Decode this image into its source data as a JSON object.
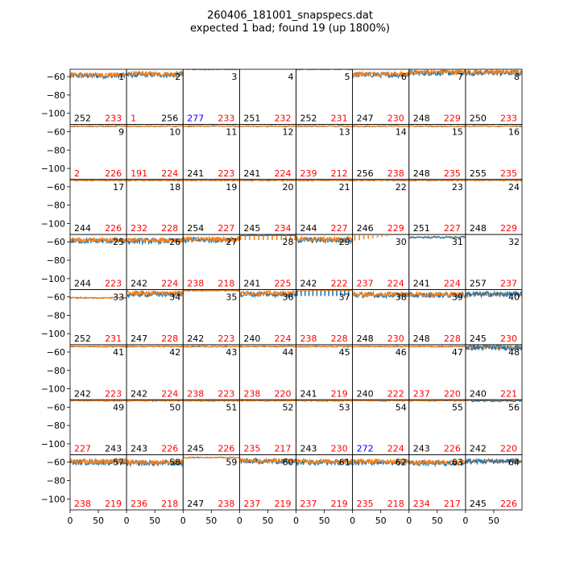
{
  "title_line1": "260406_181001_snapspecs.dat",
  "title_line2": "expected 1 bad; found 19 (up 1800%)",
  "colors": {
    "series_blue": "#1f77b4",
    "series_orange": "#ff7f0e",
    "count_black": "#000000",
    "count_red": "#ff0000",
    "count_blue": "#0000ff"
  },
  "chart_data": {
    "type": "line",
    "layout": "8x8 grid of small-multiple panels",
    "ylim": [
      -112,
      -52
    ],
    "xlim": [
      0,
      100
    ],
    "yticks": [
      -60,
      -80,
      -100
    ],
    "ytick_labels": [
      "−60",
      "−80",
      "−100"
    ],
    "xticks": [
      0,
      50
    ],
    "xtick_labels": [
      "0",
      "50"
    ],
    "series": [
      {
        "color": "#1f77b4"
      },
      {
        "color": "#ff7f0e"
      }
    ],
    "panels": [
      {
        "id": "1",
        "left": "252",
        "right": "233",
        "left_color": "black",
        "right_color": "red",
        "style": "busy",
        "level": -58
      },
      {
        "id": "2",
        "left": "1",
        "right": "256",
        "left_color": "red",
        "right_color": "black",
        "style": "busy",
        "level": -57
      },
      {
        "id": "3",
        "left": "277",
        "right": "233",
        "left_color": "blue",
        "right_color": "red",
        "style": "flat",
        "level": -52
      },
      {
        "id": "4",
        "left": "251",
        "right": "232",
        "left_color": "black",
        "right_color": "red",
        "style": "flat",
        "level": -51
      },
      {
        "id": "5",
        "left": "252",
        "right": "231",
        "left_color": "black",
        "right_color": "red",
        "style": "flat",
        "level": -52
      },
      {
        "id": "6",
        "left": "247",
        "right": "230",
        "left_color": "black",
        "right_color": "red",
        "style": "busy",
        "level": -57
      },
      {
        "id": "7",
        "left": "248",
        "right": "229",
        "left_color": "black",
        "right_color": "red",
        "style": "busy",
        "level": -55
      },
      {
        "id": "8",
        "left": "250",
        "right": "233",
        "left_color": "black",
        "right_color": "red",
        "style": "busy",
        "level": -55
      },
      {
        "id": "9",
        "left": "2",
        "right": "226",
        "left_color": "red",
        "right_color": "red",
        "style": "flat",
        "level": -54
      },
      {
        "id": "10",
        "left": "191",
        "right": "224",
        "left_color": "red",
        "right_color": "red",
        "style": "flat",
        "level": -54
      },
      {
        "id": "11",
        "left": "241",
        "right": "223",
        "left_color": "black",
        "right_color": "red",
        "style": "flat",
        "level": -54
      },
      {
        "id": "12",
        "left": "241",
        "right": "224",
        "left_color": "black",
        "right_color": "red",
        "style": "flat",
        "level": -54
      },
      {
        "id": "13",
        "left": "239",
        "right": "212",
        "left_color": "red",
        "right_color": "red",
        "style": "flat",
        "level": -54
      },
      {
        "id": "14",
        "left": "256",
        "right": "238",
        "left_color": "black",
        "right_color": "red",
        "style": "flat",
        "level": -54
      },
      {
        "id": "15",
        "left": "248",
        "right": "235",
        "left_color": "black",
        "right_color": "red",
        "style": "flat",
        "level": -54
      },
      {
        "id": "16",
        "left": "255",
        "right": "235",
        "left_color": "black",
        "right_color": "red",
        "style": "flat",
        "level": -54
      },
      {
        "id": "17",
        "left": "244",
        "right": "226",
        "left_color": "black",
        "right_color": "red",
        "style": "flat",
        "level": -53
      },
      {
        "id": "18",
        "left": "232",
        "right": "228",
        "left_color": "red",
        "right_color": "red",
        "style": "flat",
        "level": -53
      },
      {
        "id": "19",
        "left": "254",
        "right": "227",
        "left_color": "black",
        "right_color": "red",
        "style": "flat",
        "level": -53
      },
      {
        "id": "20",
        "left": "245",
        "right": "234",
        "left_color": "black",
        "right_color": "red",
        "style": "flat",
        "level": -53
      },
      {
        "id": "21",
        "left": "244",
        "right": "227",
        "left_color": "black",
        "right_color": "red",
        "style": "flat",
        "level": -53
      },
      {
        "id": "22",
        "left": "246",
        "right": "229",
        "left_color": "black",
        "right_color": "red",
        "style": "flat",
        "level": -53
      },
      {
        "id": "23",
        "left": "251",
        "right": "227",
        "left_color": "black",
        "right_color": "red",
        "style": "flat",
        "level": -53
      },
      {
        "id": "24",
        "left": "248",
        "right": "229",
        "left_color": "black",
        "right_color": "red",
        "style": "flat",
        "level": -53
      },
      {
        "id": "25",
        "left": "244",
        "right": "223",
        "left_color": "black",
        "right_color": "red",
        "style": "busy",
        "level": -58
      },
      {
        "id": "26",
        "left": "242",
        "right": "224",
        "left_color": "black",
        "right_color": "red",
        "style": "busy",
        "level": -58
      },
      {
        "id": "27",
        "left": "238",
        "right": "218",
        "left_color": "red",
        "right_color": "red",
        "style": "busy",
        "level": -57
      },
      {
        "id": "28",
        "left": "241",
        "right": "225",
        "left_color": "black",
        "right_color": "red",
        "style": "spikes",
        "level": -55
      },
      {
        "id": "29",
        "left": "242",
        "right": "222",
        "left_color": "black",
        "right_color": "red",
        "style": "busy",
        "level": -57
      },
      {
        "id": "30",
        "left": "237",
        "right": "224",
        "left_color": "red",
        "right_color": "red",
        "style": "sparse",
        "level": -53
      },
      {
        "id": "31",
        "left": "241",
        "right": "224",
        "left_color": "black",
        "right_color": "red",
        "style": "blueflat",
        "level": -55
      },
      {
        "id": "32",
        "left": "257",
        "right": "237",
        "left_color": "black",
        "right_color": "red",
        "style": "empty",
        "level": -52
      },
      {
        "id": "33",
        "left": "252",
        "right": "231",
        "left_color": "black",
        "right_color": "red",
        "style": "flat",
        "level": -61
      },
      {
        "id": "34",
        "left": "247",
        "right": "228",
        "left_color": "black",
        "right_color": "red",
        "style": "busy",
        "level": -56
      },
      {
        "id": "35",
        "left": "242",
        "right": "223",
        "left_color": "black",
        "right_color": "red",
        "style": "flat",
        "level": -53
      },
      {
        "id": "36",
        "left": "240",
        "right": "224",
        "left_color": "black",
        "right_color": "red",
        "style": "busy",
        "level": -56
      },
      {
        "id": "37",
        "left": "238",
        "right": "228",
        "left_color": "red",
        "right_color": "red",
        "style": "bluespikes",
        "level": -54
      },
      {
        "id": "38",
        "left": "248",
        "right": "230",
        "left_color": "black",
        "right_color": "red",
        "style": "busy",
        "level": -57
      },
      {
        "id": "39",
        "left": "248",
        "right": "228",
        "left_color": "black",
        "right_color": "red",
        "style": "busy",
        "level": -57
      },
      {
        "id": "40",
        "left": "245",
        "right": "230",
        "left_color": "black",
        "right_color": "red",
        "style": "bluebusy",
        "level": -57
      },
      {
        "id": "41",
        "left": "242",
        "right": "223",
        "left_color": "black",
        "right_color": "red",
        "style": "flat",
        "level": -54
      },
      {
        "id": "42",
        "left": "242",
        "right": "224",
        "left_color": "black",
        "right_color": "red",
        "style": "flat",
        "level": -54
      },
      {
        "id": "43",
        "left": "238",
        "right": "223",
        "left_color": "red",
        "right_color": "red",
        "style": "flat",
        "level": -54
      },
      {
        "id": "44",
        "left": "238",
        "right": "220",
        "left_color": "red",
        "right_color": "red",
        "style": "flat",
        "level": -54
      },
      {
        "id": "45",
        "left": "241",
        "right": "219",
        "left_color": "black",
        "right_color": "red",
        "style": "flat",
        "level": -54
      },
      {
        "id": "46",
        "left": "240",
        "right": "222",
        "left_color": "black",
        "right_color": "red",
        "style": "flat",
        "level": -54
      },
      {
        "id": "47",
        "left": "237",
        "right": "220",
        "left_color": "red",
        "right_color": "red",
        "style": "flat",
        "level": -54
      },
      {
        "id": "48",
        "left": "240",
        "right": "221",
        "left_color": "black",
        "right_color": "red",
        "style": "bluebusy",
        "level": -55
      },
      {
        "id": "49",
        "left": "227",
        "right": "243",
        "left_color": "red",
        "right_color": "black",
        "style": "flat",
        "level": -53
      },
      {
        "id": "50",
        "left": "243",
        "right": "226",
        "left_color": "black",
        "right_color": "red",
        "style": "flat",
        "level": -53
      },
      {
        "id": "51",
        "left": "245",
        "right": "226",
        "left_color": "black",
        "right_color": "red",
        "style": "flat",
        "level": -53
      },
      {
        "id": "52",
        "left": "235",
        "right": "217",
        "left_color": "red",
        "right_color": "red",
        "style": "flat",
        "level": -53
      },
      {
        "id": "53",
        "left": "243",
        "right": "230",
        "left_color": "black",
        "right_color": "red",
        "style": "flat",
        "level": -53
      },
      {
        "id": "54",
        "left": "272",
        "right": "224",
        "left_color": "blue",
        "right_color": "red",
        "style": "flat",
        "level": -53
      },
      {
        "id": "55",
        "left": "243",
        "right": "226",
        "left_color": "black",
        "right_color": "red",
        "style": "flat",
        "level": -53
      },
      {
        "id": "56",
        "left": "242",
        "right": "220",
        "left_color": "black",
        "right_color": "red",
        "style": "blueflat",
        "level": -53
      },
      {
        "id": "57",
        "left": "238",
        "right": "219",
        "left_color": "red",
        "right_color": "red",
        "style": "busy",
        "level": -59
      },
      {
        "id": "58",
        "left": "236",
        "right": "218",
        "left_color": "red",
        "right_color": "red",
        "style": "busy",
        "level": -60
      },
      {
        "id": "59",
        "left": "247",
        "right": "238",
        "left_color": "black",
        "right_color": "red",
        "style": "flat",
        "level": -55
      },
      {
        "id": "60",
        "left": "237",
        "right": "219",
        "left_color": "red",
        "right_color": "red",
        "style": "busy",
        "level": -58
      },
      {
        "id": "61",
        "left": "237",
        "right": "219",
        "left_color": "red",
        "right_color": "red",
        "style": "busy",
        "level": -59
      },
      {
        "id": "62",
        "left": "235",
        "right": "218",
        "left_color": "red",
        "right_color": "red",
        "style": "busy",
        "level": -59
      },
      {
        "id": "63",
        "left": "234",
        "right": "217",
        "left_color": "red",
        "right_color": "red",
        "style": "busy",
        "level": -60
      },
      {
        "id": "64",
        "left": "245",
        "right": "226",
        "left_color": "black",
        "right_color": "red",
        "style": "bluebusy",
        "level": -59
      }
    ]
  }
}
